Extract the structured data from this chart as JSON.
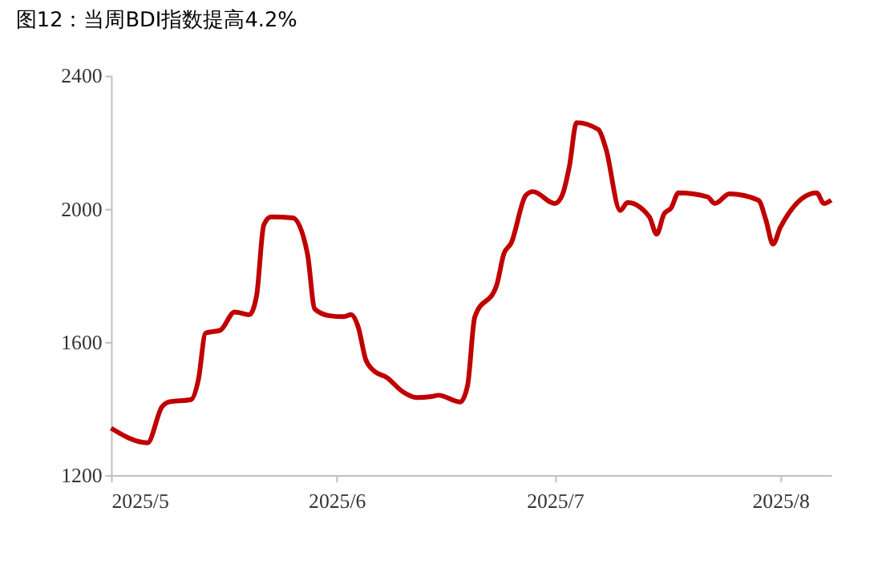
{
  "chart_data": {
    "type": "line",
    "title": "图12：当周BDI指数提高4.2%",
    "x": [
      "2025-05-01",
      "2025-05-06",
      "2025-05-08",
      "2025-05-09",
      "2025-05-12",
      "2025-05-13",
      "2025-05-14",
      "2025-05-16",
      "2025-05-18",
      "2025-05-20",
      "2025-05-21",
      "2025-05-22",
      "2025-05-23",
      "2025-05-26",
      "2025-05-28",
      "2025-05-29",
      "2025-05-31",
      "2025-06-02",
      "2025-06-03",
      "2025-06-04",
      "2025-06-05",
      "2025-06-06",
      "2025-06-08",
      "2025-06-10",
      "2025-06-12",
      "2025-06-14",
      "2025-06-15",
      "2025-06-18",
      "2025-06-19",
      "2025-06-20",
      "2025-06-23",
      "2025-06-24",
      "2025-06-25",
      "2025-06-27",
      "2025-06-28",
      "2025-07-01",
      "2025-07-02",
      "2025-07-03",
      "2025-07-04",
      "2025-07-07",
      "2025-07-08",
      "2025-07-10",
      "2025-07-11",
      "2025-07-14",
      "2025-07-15",
      "2025-07-16",
      "2025-07-17",
      "2025-07-18",
      "2025-07-22",
      "2025-07-23",
      "2025-07-25",
      "2025-07-29",
      "2025-07-30",
      "2025-07-31",
      "2025-08-01",
      "2025-08-06",
      "2025-08-07",
      "2025-08-08"
    ],
    "series": [
      {
        "color": "#c00000",
        "values": [
          1341,
          1297,
          1405,
          1420,
          1427,
          1486,
          1627,
          1635,
          1690,
          1682,
          1738,
          1952,
          1976,
          1973,
          1865,
          1699,
          1679,
          1676,
          1682,
          1643,
          1548,
          1516,
          1492,
          1452,
          1433,
          1436,
          1440,
          1420,
          1468,
          1675,
          1770,
          1865,
          1897,
          2040,
          2052,
          2016,
          2040,
          2127,
          2259,
          2238,
          2183,
          1995,
          2019,
          1976,
          1924,
          1984,
          2003,
          2048,
          2036,
          2016,
          2045,
          2026,
          1968,
          1894,
          1944,
          2048,
          2016,
          2026
        ]
      }
    ],
    "xlim": [
      "2025-05-01",
      "2025-08-08"
    ],
    "xticks": [
      {
        "value": "2025-05-01",
        "label": "2025/5"
      },
      {
        "value": "2025-06-01",
        "label": "2025/6"
      },
      {
        "value": "2025-07-01",
        "label": "2025/7"
      },
      {
        "value": "2025-08-01",
        "label": "2025/8"
      }
    ],
    "ylim": [
      1200,
      2400
    ],
    "yticks": [
      1200,
      1600,
      2000,
      2400
    ],
    "grid": false,
    "legend": false,
    "line_style": "solid",
    "marker": "none"
  }
}
